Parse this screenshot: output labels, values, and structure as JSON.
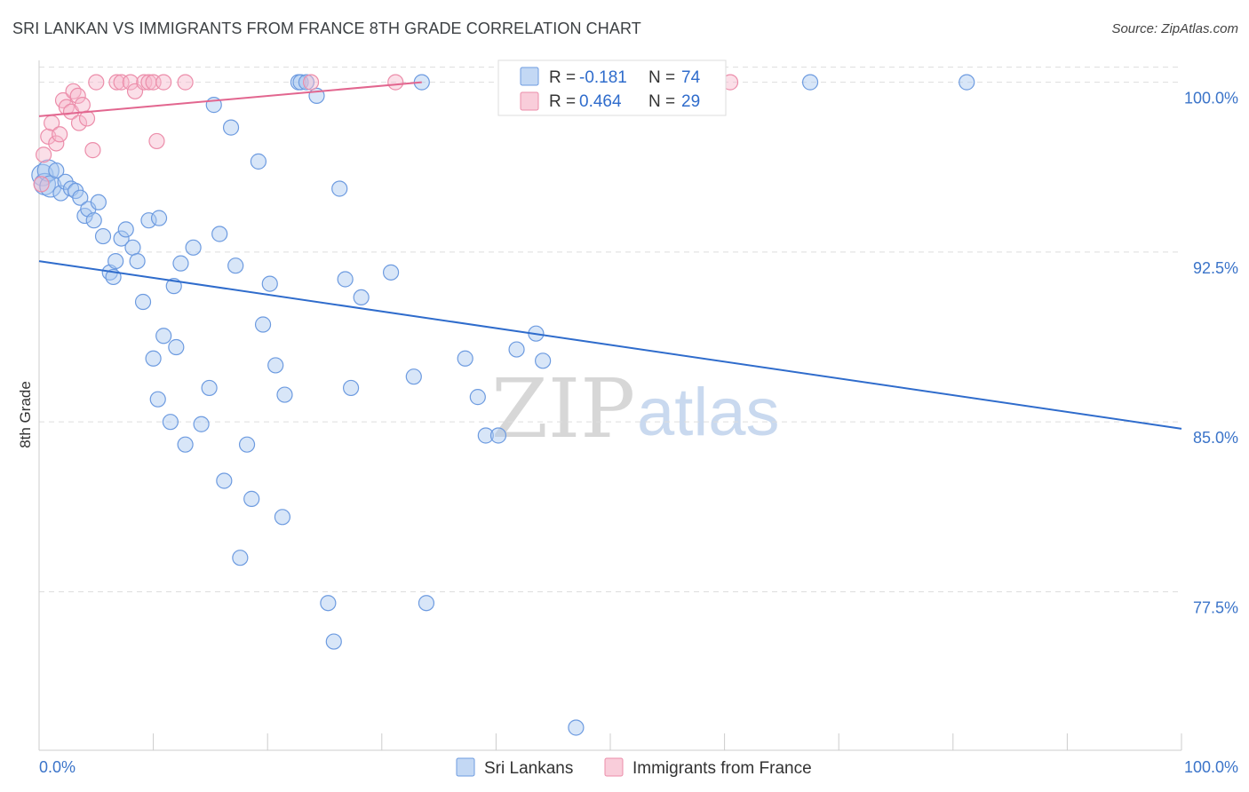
{
  "header": {
    "title": "SRI LANKAN VS IMMIGRANTS FROM FRANCE 8TH GRADE CORRELATION CHART",
    "source": "Source: ZipAtlas.com"
  },
  "watermark": {
    "zip": "ZIP",
    "atlas": "atlas"
  },
  "legend": {
    "series1": {
      "r_label": "R = ",
      "r_value": "-0.181",
      "n_label": "N = ",
      "n_value": "74"
    },
    "series2": {
      "r_label": "R = ",
      "r_value": "0.464",
      "n_label": "N = ",
      "n_value": "29"
    }
  },
  "bottom_legend": {
    "series1": "Sri Lankans",
    "series2": "Immigrants from France"
  },
  "colors": {
    "blue_fill": "#a9c7f0",
    "blue_stroke": "#6d9be0",
    "blue_line": "#2f6ccc",
    "pink_fill": "#f6b8cb",
    "pink_stroke": "#ec8daa",
    "pink_line": "#e2668f",
    "grid": "#dddddd",
    "axis": "#cccccc",
    "tick_text": "#3b74c9"
  },
  "chart_data": {
    "type": "scatter",
    "title": "SRI LANKAN VS IMMIGRANTS FROM FRANCE 8TH GRADE CORRELATION CHART",
    "xlabel": "",
    "ylabel": "8th Grade",
    "xlim": [
      0,
      100
    ],
    "ylim": [
      70.5,
      101.2
    ],
    "x_tick_labels": [
      "0.0%",
      "100.0%"
    ],
    "y_ticks": [
      77.5,
      85.0,
      92.5,
      100.0
    ],
    "y_tick_labels": [
      "77.5%",
      "85.0%",
      "92.5%",
      "100.0%"
    ],
    "grid": true,
    "series": [
      {
        "name": "Sri Lankans",
        "r": -0.181,
        "n": 74,
        "trend": {
          "x0": 0,
          "y0": 92.1,
          "x1": 100,
          "y1": 84.7
        },
        "points": [
          [
            0.3,
            95.9
          ],
          [
            0.5,
            95.5
          ],
          [
            0.8,
            96.1
          ],
          [
            1.0,
            95.4
          ],
          [
            1.5,
            96.1
          ],
          [
            1.9,
            95.1
          ],
          [
            2.3,
            95.6
          ],
          [
            2.8,
            95.3
          ],
          [
            3.2,
            95.2
          ],
          [
            3.6,
            94.9
          ],
          [
            4.0,
            94.1
          ],
          [
            4.3,
            94.4
          ],
          [
            4.8,
            93.9
          ],
          [
            5.2,
            94.7
          ],
          [
            5.6,
            93.2
          ],
          [
            6.2,
            91.6
          ],
          [
            6.5,
            91.4
          ],
          [
            6.7,
            92.1
          ],
          [
            7.2,
            93.1
          ],
          [
            7.6,
            93.5
          ],
          [
            8.2,
            92.7
          ],
          [
            8.6,
            92.1
          ],
          [
            9.1,
            90.3
          ],
          [
            9.6,
            93.9
          ],
          [
            10.0,
            87.8
          ],
          [
            10.4,
            86.0
          ],
          [
            10.5,
            94.0
          ],
          [
            10.9,
            88.8
          ],
          [
            11.8,
            91.0
          ],
          [
            12.0,
            88.3
          ],
          [
            12.4,
            92.0
          ],
          [
            12.8,
            84.0
          ],
          [
            13.5,
            92.7
          ],
          [
            14.2,
            84.9
          ],
          [
            14.9,
            86.5
          ],
          [
            15.8,
            93.3
          ],
          [
            16.2,
            82.4
          ],
          [
            16.8,
            98.0
          ],
          [
            17.2,
            91.9
          ],
          [
            17.6,
            79.0
          ],
          [
            18.2,
            84.0
          ],
          [
            18.6,
            81.6
          ],
          [
            19.2,
            96.5
          ],
          [
            19.6,
            89.3
          ],
          [
            20.2,
            91.1
          ],
          [
            20.7,
            87.5
          ],
          [
            21.3,
            80.8
          ],
          [
            21.5,
            86.2
          ],
          [
            25.3,
            77.0
          ],
          [
            25.8,
            75.3
          ],
          [
            26.3,
            95.3
          ],
          [
            26.8,
            91.3
          ],
          [
            27.3,
            86.5
          ],
          [
            28.2,
            90.5
          ],
          [
            30.8,
            91.6
          ],
          [
            32.8,
            87.0
          ],
          [
            33.5,
            100.0
          ],
          [
            33.9,
            77.0
          ],
          [
            37.3,
            87.8
          ],
          [
            38.4,
            86.1
          ],
          [
            39.1,
            84.4
          ],
          [
            40.2,
            84.4
          ],
          [
            41.8,
            88.2
          ],
          [
            43.5,
            88.9
          ],
          [
            44.1,
            87.7
          ],
          [
            47.0,
            71.5
          ],
          [
            67.5,
            100.0
          ],
          [
            81.2,
            100.0
          ],
          [
            11.5,
            85.0
          ],
          [
            24.3,
            99.4
          ],
          [
            22.7,
            100.0
          ],
          [
            22.9,
            100.0
          ],
          [
            23.4,
            100.0
          ],
          [
            15.3,
            99.0
          ]
        ]
      },
      {
        "name": "Immigrants from France",
        "r": 0.464,
        "n": 29,
        "trend": {
          "x0": 0,
          "y0": 98.5,
          "x1": 33.5,
          "y1": 100.0
        },
        "points": [
          [
            0.2,
            95.5
          ],
          [
            0.4,
            96.8
          ],
          [
            0.8,
            97.6
          ],
          [
            1.1,
            98.2
          ],
          [
            1.5,
            97.3
          ],
          [
            1.8,
            97.7
          ],
          [
            2.1,
            99.2
          ],
          [
            2.4,
            98.9
          ],
          [
            2.8,
            98.7
          ],
          [
            3.0,
            99.6
          ],
          [
            3.4,
            99.4
          ],
          [
            3.5,
            98.2
          ],
          [
            3.8,
            99.0
          ],
          [
            4.2,
            98.4
          ],
          [
            4.7,
            97.0
          ],
          [
            5.0,
            100.0
          ],
          [
            6.8,
            100.0
          ],
          [
            7.2,
            100.0
          ],
          [
            8.0,
            100.0
          ],
          [
            8.4,
            99.6
          ],
          [
            9.2,
            100.0
          ],
          [
            9.6,
            100.0
          ],
          [
            10.0,
            100.0
          ],
          [
            10.3,
            97.4
          ],
          [
            10.9,
            100.0
          ],
          [
            12.8,
            100.0
          ],
          [
            23.8,
            100.0
          ],
          [
            31.2,
            100.0
          ],
          [
            60.5,
            100.0
          ]
        ]
      }
    ]
  }
}
